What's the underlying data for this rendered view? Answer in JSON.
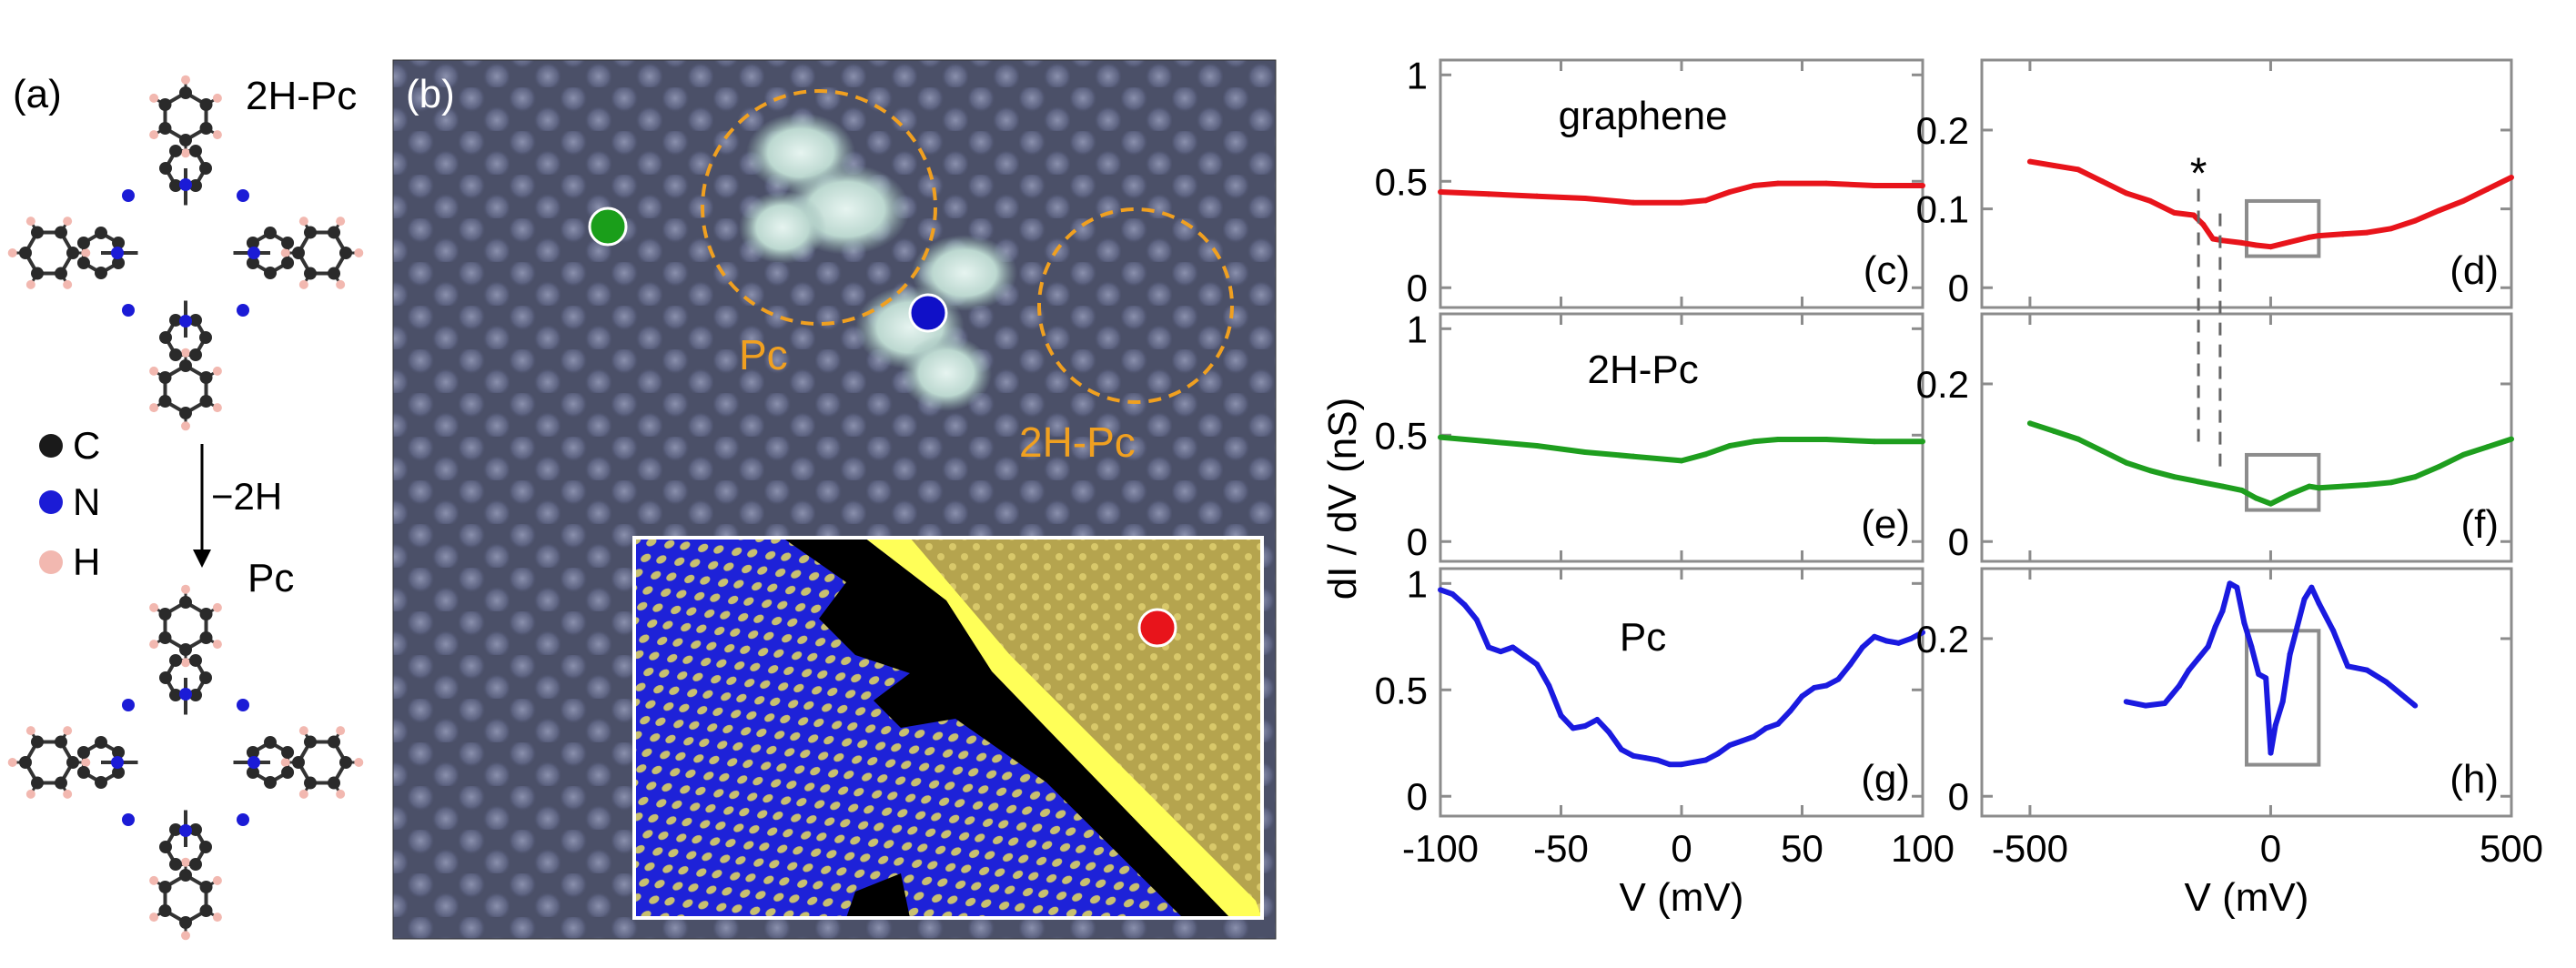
{
  "panel_labels": {
    "a": "(a)",
    "b": "(b)",
    "c": "(c)",
    "d": "(d)",
    "e": "(e)",
    "f": "(f)",
    "g": "(g)",
    "h": "(h)"
  },
  "molecule": {
    "top_label": "2H-Pc",
    "bottom_label": "Pc",
    "arrow_label": "−2H",
    "legend": [
      {
        "symbol": "C",
        "color": "#1a1a1a"
      },
      {
        "symbol": "N",
        "color": "#1b1bd6"
      },
      {
        "symbol": "H",
        "color": "#f2b8b0"
      }
    ]
  },
  "stm": {
    "pc_label": "Pc",
    "h2pc_label": "2H-Pc",
    "marker_colors": {
      "graphene": "#e8141b",
      "h2pc": "#1a9e1a",
      "pc": "#1010c8"
    },
    "ring_color": "#f0a020"
  },
  "y_axis_label": "dI / dV (nS)",
  "colors": {
    "graphene": "#e8141b",
    "h2pc": "#1e9e1e",
    "pc": "#1a1ae0",
    "box": "#8c8c8c",
    "axis": "#8c8c8c"
  },
  "chart_data": [
    {
      "panel": "c",
      "type": "line",
      "title": "graphene",
      "xlim": [
        -100,
        100
      ],
      "ylim": [
        0,
        1
      ],
      "yticks": [
        "0",
        "0.5",
        "1"
      ],
      "x": [
        -100,
        -80,
        -60,
        -40,
        -20,
        0,
        10,
        20,
        30,
        40,
        60,
        80,
        100
      ],
      "series": [
        {
          "values": [
            0.45,
            0.44,
            0.43,
            0.42,
            0.4,
            0.4,
            0.41,
            0.45,
            0.48,
            0.49,
            0.49,
            0.48,
            0.48
          ]
        }
      ]
    },
    {
      "panel": "e",
      "type": "line",
      "title": "2H-Pc",
      "xlim": [
        -100,
        100
      ],
      "ylim": [
        0,
        1
      ],
      "yticks": [
        "0",
        "0.5",
        "1"
      ],
      "x": [
        -100,
        -80,
        -60,
        -40,
        -20,
        0,
        10,
        20,
        30,
        40,
        60,
        80,
        100
      ],
      "series": [
        {
          "values": [
            0.49,
            0.47,
            0.45,
            0.42,
            0.4,
            0.38,
            0.41,
            0.45,
            0.47,
            0.48,
            0.48,
            0.47,
            0.47
          ]
        }
      ]
    },
    {
      "panel": "g",
      "type": "line",
      "title": "Pc",
      "xlim": [
        -100,
        100
      ],
      "ylim": [
        0,
        1
      ],
      "yticks": [
        "0",
        "0.5",
        "1"
      ],
      "xticks": [
        "-100",
        "-50",
        "0",
        "50",
        "100"
      ],
      "xlabel": "V (mV)",
      "x": [
        -100,
        -95,
        -90,
        -85,
        -80,
        -75,
        -70,
        -65,
        -60,
        -55,
        -50,
        -45,
        -40,
        -35,
        -30,
        -25,
        -20,
        -15,
        -10,
        -5,
        0,
        5,
        10,
        15,
        20,
        25,
        30,
        35,
        40,
        45,
        50,
        55,
        60,
        65,
        70,
        75,
        80,
        85,
        90,
        95,
        100
      ],
      "series": [
        {
          "values": [
            0.97,
            0.95,
            0.9,
            0.83,
            0.7,
            0.68,
            0.7,
            0.66,
            0.62,
            0.52,
            0.38,
            0.32,
            0.33,
            0.36,
            0.3,
            0.22,
            0.19,
            0.18,
            0.17,
            0.15,
            0.15,
            0.16,
            0.17,
            0.2,
            0.24,
            0.26,
            0.28,
            0.32,
            0.34,
            0.4,
            0.47,
            0.51,
            0.52,
            0.55,
            0.62,
            0.7,
            0.75,
            0.73,
            0.72,
            0.74,
            0.77
          ]
        }
      ]
    },
    {
      "panel": "d",
      "type": "line",
      "xlim": [
        -600,
        500
      ],
      "ylim": [
        0,
        0.27
      ],
      "yticks": [
        "0",
        "0.1",
        "0.2"
      ],
      "annotation": "*",
      "x": [
        -500,
        -450,
        -400,
        -350,
        -300,
        -250,
        -200,
        -160,
        -140,
        -120,
        -100,
        -60,
        -30,
        0,
        40,
        80,
        100,
        150,
        200,
        250,
        300,
        350,
        400,
        450,
        500
      ],
      "series": [
        {
          "values": [
            0.16,
            0.155,
            0.15,
            0.135,
            0.12,
            0.11,
            0.095,
            0.092,
            0.08,
            0.062,
            0.06,
            0.057,
            0.054,
            0.052,
            0.058,
            0.064,
            0.066,
            0.068,
            0.07,
            0.075,
            0.085,
            0.098,
            0.11,
            0.125,
            0.14
          ]
        }
      ]
    },
    {
      "panel": "f",
      "type": "line",
      "xlim": [
        -600,
        500
      ],
      "ylim": [
        0,
        0.27
      ],
      "yticks": [
        "0",
        "0.2"
      ],
      "x": [
        -500,
        -450,
        -400,
        -350,
        -300,
        -250,
        -200,
        -150,
        -100,
        -60,
        -30,
        0,
        40,
        80,
        100,
        150,
        200,
        250,
        300,
        350,
        400,
        450,
        500
      ],
      "series": [
        {
          "values": [
            0.15,
            0.14,
            0.13,
            0.115,
            0.1,
            0.09,
            0.082,
            0.076,
            0.07,
            0.065,
            0.055,
            0.048,
            0.06,
            0.07,
            0.068,
            0.07,
            0.072,
            0.075,
            0.082,
            0.095,
            0.11,
            0.12,
            0.13
          ]
        }
      ]
    },
    {
      "panel": "h",
      "type": "line",
      "xlim": [
        -600,
        500
      ],
      "ylim": [
        0,
        0.27
      ],
      "yticks": [
        "0",
        "0.2"
      ],
      "xticks": [
        "-500",
        "0",
        "500"
      ],
      "xlabel": "V (mV)",
      "x": [
        -300,
        -260,
        -220,
        -190,
        -170,
        -150,
        -130,
        -115,
        -100,
        -85,
        -70,
        -55,
        -40,
        -25,
        -10,
        0,
        10,
        25,
        40,
        55,
        70,
        85,
        100,
        130,
        160,
        200,
        240,
        280,
        300
      ],
      "series": [
        {
          "values": [
            0.12,
            0.115,
            0.118,
            0.14,
            0.16,
            0.175,
            0.19,
            0.215,
            0.235,
            0.27,
            0.265,
            0.22,
            0.19,
            0.155,
            0.15,
            0.055,
            0.09,
            0.12,
            0.18,
            0.215,
            0.25,
            0.265,
            0.245,
            0.21,
            0.165,
            0.16,
            0.145,
            0.125,
            0.115
          ]
        }
      ]
    }
  ]
}
